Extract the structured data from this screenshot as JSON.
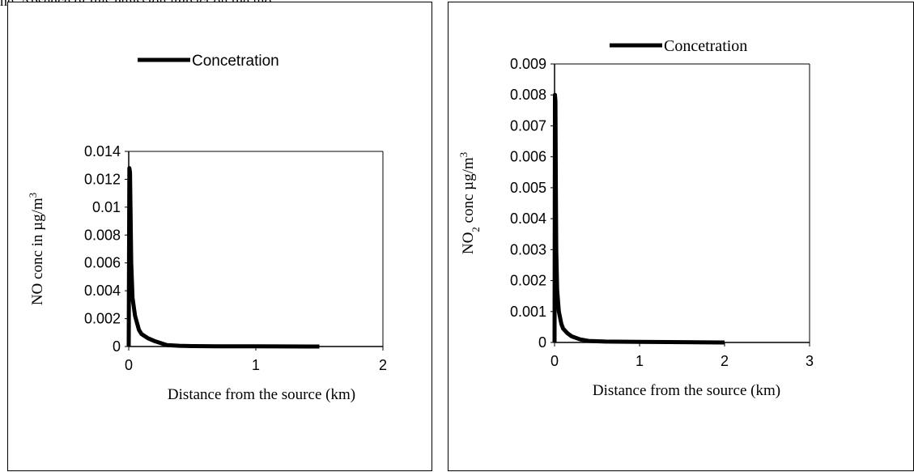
{
  "caption_fragment": "ne, Absence of this emission impact on the mo",
  "chart_data": [
    {
      "type": "line",
      "legend": {
        "label": "Concetration",
        "position": "top"
      },
      "xlabel": "Distance from the source (km)",
      "ylabel_prefix": "NO conc in µg/m",
      "ylabel_sup": "3",
      "xlim": [
        0,
        2
      ],
      "ylim": [
        0,
        0.014
      ],
      "xticks": [
        "0",
        "1",
        "2"
      ],
      "yticks": [
        "0",
        "0.002",
        "0.004",
        "0.006",
        "0.008",
        "0.01",
        "0.012",
        "0.014"
      ],
      "grid": false,
      "series": [
        {
          "name": "Concetration",
          "x": [
            0,
            0.005,
            0.01,
            0.015,
            0.02,
            0.03,
            0.05,
            0.08,
            0.1,
            0.15,
            0.2,
            0.3,
            0.4,
            0.5,
            0.7,
            1.0,
            1.5
          ],
          "y": [
            0,
            0.0128,
            0.0125,
            0.009,
            0.006,
            0.0035,
            0.0022,
            0.0012,
            0.0009,
            0.0006,
            0.0004,
            0.0001,
            5e-05,
            3e-05,
            2e-05,
            1e-05,
            0.0
          ]
        }
      ]
    },
    {
      "type": "line",
      "legend": {
        "label": "Concetration",
        "position": "top"
      },
      "xlabel": "Distance from the source (km)",
      "ylabel_prefix": "NO",
      "ylabel_sub": "2",
      "ylabel_mid": " conc µg/m",
      "ylabel_sup": "3",
      "xlim": [
        0,
        3
      ],
      "ylim": [
        0,
        0.009
      ],
      "xticks": [
        "0",
        "1",
        "2",
        "3"
      ],
      "yticks": [
        "0",
        "0.001",
        "0.002",
        "0.003",
        "0.004",
        "0.005",
        "0.006",
        "0.007",
        "0.008",
        "0.009"
      ],
      "grid": false,
      "series": [
        {
          "name": "Concetration",
          "x": [
            0,
            0.005,
            0.01,
            0.015,
            0.02,
            0.03,
            0.05,
            0.08,
            0.1,
            0.15,
            0.2,
            0.3,
            0.4,
            0.6,
            1.0,
            1.5,
            2.0
          ],
          "y": [
            0,
            0.008,
            0.0078,
            0.005,
            0.003,
            0.0017,
            0.001,
            0.0006,
            0.00045,
            0.0003,
            0.0002,
            0.0001,
            5e-05,
            3e-05,
            2e-05,
            1e-05,
            0.0
          ]
        }
      ]
    }
  ]
}
